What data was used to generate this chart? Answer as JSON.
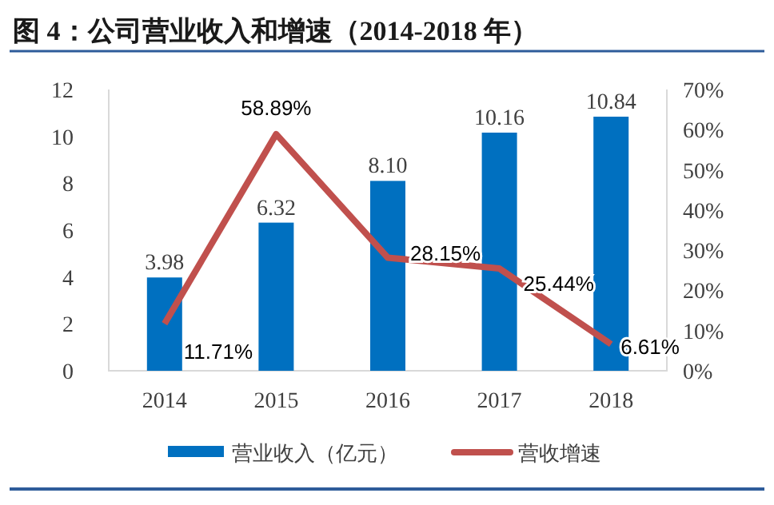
{
  "chart_data": {
    "type": "bar",
    "title": "图 4：公司营业收入和增速（2014-2018 年）",
    "categories": [
      "2014",
      "2015",
      "2016",
      "2017",
      "2018"
    ],
    "series": [
      {
        "name": "营业收入（亿元）",
        "color": "#0070c0",
        "values": [
          3.98,
          6.32,
          8.1,
          10.16,
          10.84
        ],
        "value_labels": [
          "3.98",
          "6.32",
          "8.10",
          "10.16",
          "10.84"
        ]
      },
      {
        "name": "营收增速",
        "type": "line",
        "axis": "y2",
        "color": "#c0504d",
        "values": [
          11.71,
          58.89,
          28.15,
          25.44,
          6.61
        ],
        "value_labels": [
          "11.71%",
          "58.89%",
          "28.15%",
          "25.44%",
          "6.61%"
        ]
      }
    ],
    "ylim": [
      0,
      12
    ],
    "yticks": [
      0,
      2,
      4,
      6,
      8,
      10,
      12
    ],
    "y2lim": [
      0,
      70
    ],
    "y2ticks": [
      {
        "value": 0,
        "label": "0%"
      },
      {
        "value": 10,
        "label": "10%"
      },
      {
        "value": 20,
        "label": "20%"
      },
      {
        "value": 30,
        "label": "30%"
      },
      {
        "value": 40,
        "label": "40%"
      },
      {
        "value": 50,
        "label": "50%"
      },
      {
        "value": 60,
        "label": "60%"
      },
      {
        "value": 70,
        "label": "70%"
      }
    ],
    "legend": "bottom"
  }
}
